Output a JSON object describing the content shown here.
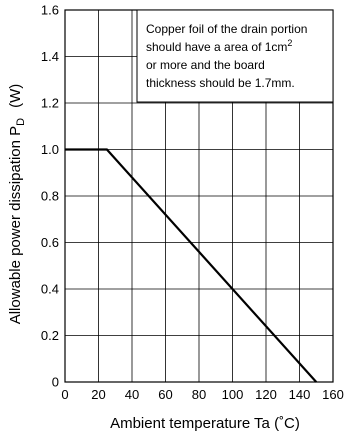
{
  "chart_data": {
    "type": "line",
    "title": "",
    "xlabel": "Ambient temperature   Ta   (˚C)",
    "ylabel": "Allowable power dissipation   P",
    "ylabel_subscript": "D",
    "ylabel_unit": "(W)",
    "xlim": [
      0,
      160
    ],
    "ylim": [
      0,
      1.6
    ],
    "x_ticks": [
      "0",
      "20",
      "40",
      "60",
      "80",
      "100",
      "120",
      "140",
      "160"
    ],
    "y_ticks": [
      "0",
      "0.2",
      "0.4",
      "0.6",
      "0.8",
      "1.0",
      "1.2",
      "1.4",
      "1.6"
    ],
    "grid": true,
    "series": [
      {
        "x": [
          0,
          25,
          150
        ],
        "y": [
          1.0,
          1.0,
          0
        ]
      }
    ],
    "annotation": {
      "lines": [
        "Copper foil of the drain portion",
        "should have a area of 1cm",
        "or more and the board",
        "thickness should be 1.7mm."
      ],
      "superscript": "2"
    }
  }
}
